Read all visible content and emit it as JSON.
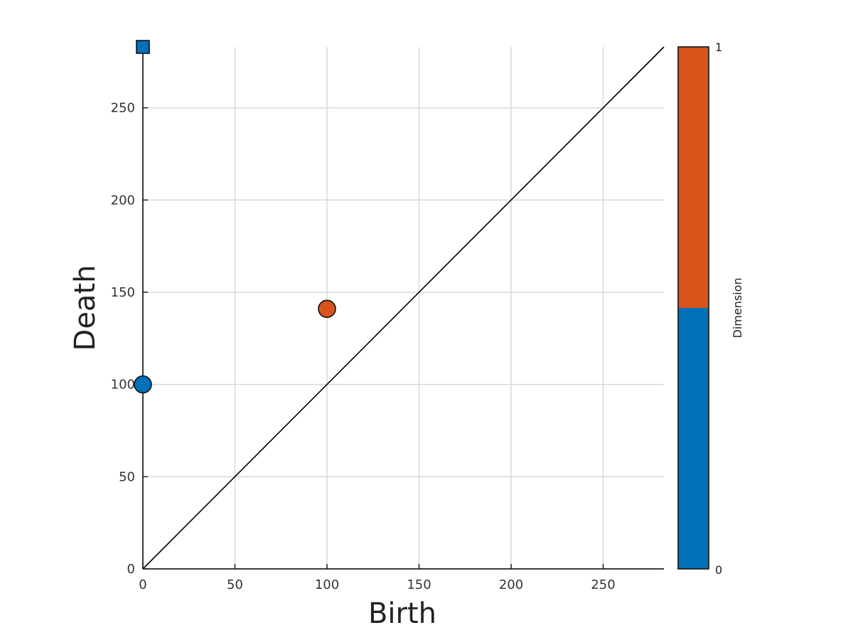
{
  "chart_data": {
    "type": "scatter",
    "title": "",
    "xlabel": "Birth",
    "ylabel": "Death",
    "xlim": [
      0,
      283
    ],
    "ylim": [
      0,
      283
    ],
    "xticks": [
      0,
      50,
      100,
      150,
      200,
      250
    ],
    "yticks": [
      0,
      50,
      100,
      150,
      200,
      250
    ],
    "grid": true,
    "diagonal": true,
    "points": [
      {
        "x": 0,
        "y": 100,
        "dimension": 0,
        "marker": "circle"
      },
      {
        "x": 100,
        "y": 141,
        "dimension": 1,
        "marker": "circle"
      },
      {
        "x": 0,
        "y": 283,
        "dimension": 0,
        "marker": "square",
        "note": "infinite"
      }
    ],
    "colorbar": {
      "label": "Dimension",
      "min_label": "0",
      "max_label": "1",
      "colors": [
        "#0070b8",
        "#d9541a"
      ]
    }
  }
}
